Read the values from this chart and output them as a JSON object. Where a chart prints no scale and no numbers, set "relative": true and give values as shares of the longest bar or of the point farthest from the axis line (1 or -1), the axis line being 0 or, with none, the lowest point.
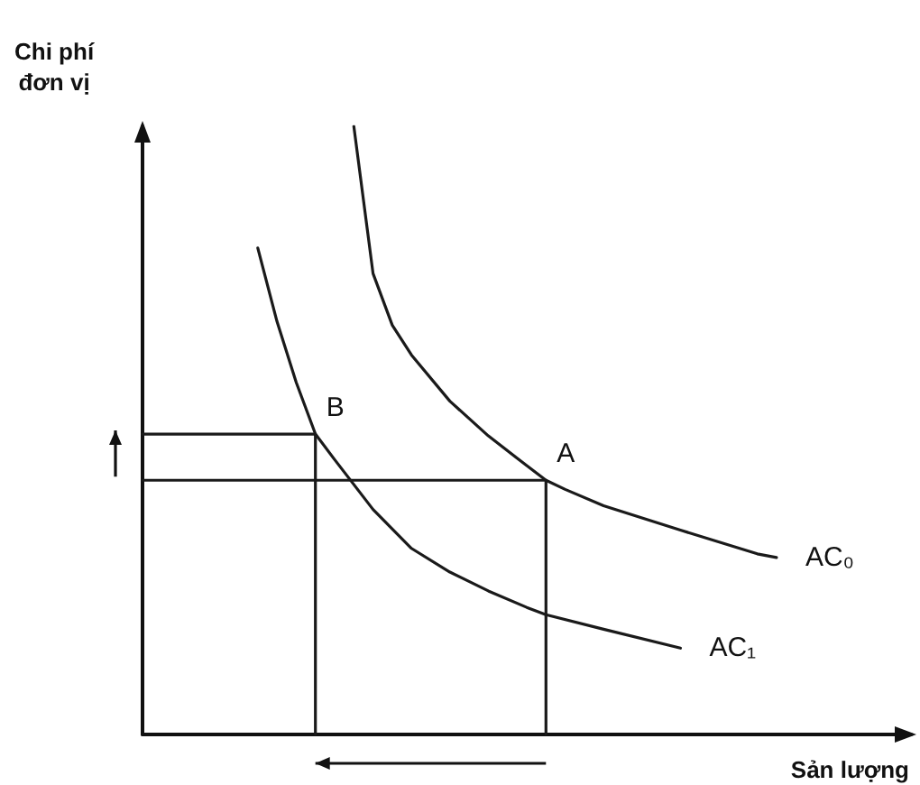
{
  "chart_data": {
    "type": "line",
    "relative": true,
    "xlabel": "Sản lượng",
    "ylabel": "Chi phí\nđơn vị",
    "grid": false,
    "legend": false,
    "marker": "none",
    "line_style": "solid",
    "annotations": [
      "A",
      "B"
    ],
    "categories": [
      null,
      null,
      null,
      null,
      null,
      null,
      null,
      null,
      null,
      null,
      null,
      null,
      null,
      null,
      null,
      null,
      null,
      null,
      null,
      null,
      null,
      null,
      null,
      null,
      null,
      null,
      null,
      null,
      null,
      null,
      null,
      null,
      null,
      null,
      null,
      null,
      null,
      null,
      null,
      null,
      null
    ],
    "series": [
      {
        "name": "AC₀",
        "color": "#1a1a1a",
        "values": [
          null,
          null,
          null,
          null,
          null,
          null,
          null,
          null,
          null,
          null,
          null,
          1,
          0.758,
          0.673,
          0.624,
          null,
          0.548,
          null,
          0.491,
          null,
          0.442,
          0.418,
          0.403,
          null,
          0.376,
          null,
          null,
          null,
          0.336,
          null,
          null,
          null,
          0.297,
          0.291,
          null,
          null,
          null,
          null,
          null,
          null,
          null
        ]
      },
      {
        "name": "AC₁",
        "color": "#1a1a1a",
        "values": [
          null,
          null,
          null,
          null,
          null,
          null,
          0.8,
          0.679,
          0.579,
          0.494,
          0.452,
          null,
          0.37,
          null,
          0.306,
          null,
          0.267,
          null,
          0.236,
          null,
          0.209,
          0.197,
          null,
          null,
          0.173,
          null,
          null,
          null,
          0.142,
          null,
          null,
          null,
          null,
          null,
          null,
          null,
          null,
          null,
          null,
          null,
          null
        ]
      },
      {
        "type": "step",
        "color": "#1a1a1a",
        "values": [
          0.418,
          0.418,
          0.418,
          0.418,
          0.418,
          0.418,
          0.418,
          0.418,
          0.418,
          0.418,
          0.418,
          0.418,
          0.418,
          0.418,
          0.418,
          0.418,
          0.418,
          0.418,
          0.418,
          0.418,
          0.418,
          0,
          null,
          null,
          null,
          null,
          null,
          null,
          null,
          null,
          null,
          null,
          null,
          null,
          null,
          null,
          null,
          null,
          null,
          null,
          null
        ]
      },
      {
        "type": "step",
        "color": "#1a1a1a",
        "values": [
          0.494,
          0.494,
          0.494,
          0.494,
          0.494,
          0.494,
          0.494,
          0.494,
          0.494,
          0,
          null,
          null,
          null,
          null,
          null,
          null,
          null,
          null,
          null,
          null,
          null,
          null,
          null,
          null,
          null,
          null,
          null,
          null,
          null,
          null,
          null,
          null,
          null,
          null,
          null,
          null,
          null,
          null,
          null,
          null,
          null
        ]
      }
    ]
  }
}
